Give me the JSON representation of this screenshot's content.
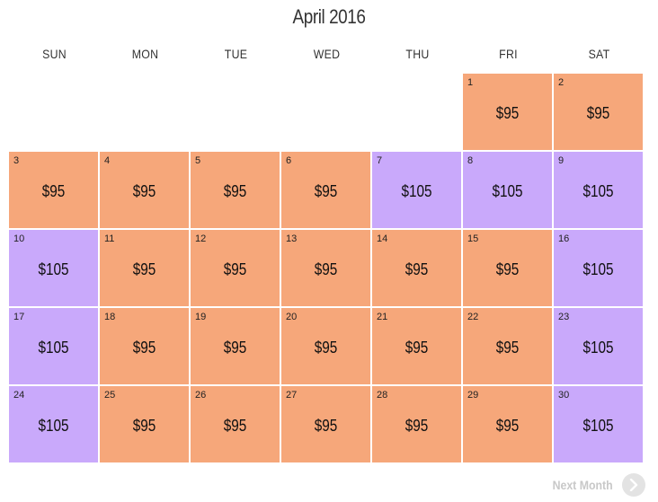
{
  "calendar": {
    "month_title": "April 2016",
    "weekdays": [
      "SUN",
      "MON",
      "TUE",
      "WED",
      "THU",
      "FRI",
      "SAT"
    ],
    "weeks": [
      [
        {
          "day": "",
          "price": "",
          "color": "empty"
        },
        {
          "day": "",
          "price": "",
          "color": "empty"
        },
        {
          "day": "",
          "price": "",
          "color": "empty"
        },
        {
          "day": "",
          "price": "",
          "color": "empty"
        },
        {
          "day": "",
          "price": "",
          "color": "empty"
        },
        {
          "day": "1",
          "price": "$95",
          "color": "orange"
        },
        {
          "day": "2",
          "price": "$95",
          "color": "orange"
        }
      ],
      [
        {
          "day": "3",
          "price": "$95",
          "color": "orange"
        },
        {
          "day": "4",
          "price": "$95",
          "color": "orange"
        },
        {
          "day": "5",
          "price": "$95",
          "color": "orange"
        },
        {
          "day": "6",
          "price": "$95",
          "color": "orange"
        },
        {
          "day": "7",
          "price": "$105",
          "color": "purple"
        },
        {
          "day": "8",
          "price": "$105",
          "color": "purple"
        },
        {
          "day": "9",
          "price": "$105",
          "color": "purple"
        }
      ],
      [
        {
          "day": "10",
          "price": "$105",
          "color": "purple"
        },
        {
          "day": "11",
          "price": "$95",
          "color": "orange"
        },
        {
          "day": "12",
          "price": "$95",
          "color": "orange"
        },
        {
          "day": "13",
          "price": "$95",
          "color": "orange"
        },
        {
          "day": "14",
          "price": "$95",
          "color": "orange"
        },
        {
          "day": "15",
          "price": "$95",
          "color": "orange"
        },
        {
          "day": "16",
          "price": "$105",
          "color": "purple"
        }
      ],
      [
        {
          "day": "17",
          "price": "$105",
          "color": "purple"
        },
        {
          "day": "18",
          "price": "$95",
          "color": "orange"
        },
        {
          "day": "19",
          "price": "$95",
          "color": "orange"
        },
        {
          "day": "20",
          "price": "$95",
          "color": "orange"
        },
        {
          "day": "21",
          "price": "$95",
          "color": "orange"
        },
        {
          "day": "22",
          "price": "$95",
          "color": "orange"
        },
        {
          "day": "23",
          "price": "$105",
          "color": "purple"
        }
      ],
      [
        {
          "day": "24",
          "price": "$105",
          "color": "purple"
        },
        {
          "day": "25",
          "price": "$95",
          "color": "orange"
        },
        {
          "day": "26",
          "price": "$95",
          "color": "orange"
        },
        {
          "day": "27",
          "price": "$95",
          "color": "orange"
        },
        {
          "day": "28",
          "price": "$95",
          "color": "orange"
        },
        {
          "day": "29",
          "price": "$95",
          "color": "orange"
        },
        {
          "day": "30",
          "price": "$105",
          "color": "purple"
        }
      ]
    ],
    "colors": {
      "orange": "#f6a77a",
      "purple": "#c9a9fb"
    }
  },
  "navigation": {
    "next_label": "Next Month",
    "next_icon": "chevron-right-icon"
  }
}
